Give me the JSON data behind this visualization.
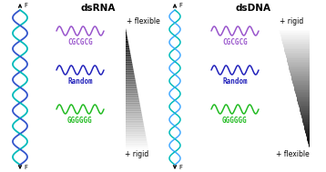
{
  "title_left": "dsRNA",
  "title_right": "dsDNA",
  "bg_color": "#ffffff",
  "labels": [
    "CGCGCG",
    "Random",
    "GGGGGG"
  ],
  "label_colors": [
    "#9955cc",
    "#2222bb",
    "#22bb22"
  ],
  "wave_colors": [
    "#9955cc",
    "#2222bb",
    "#22bb22"
  ],
  "left_top_label": "+ flexible",
  "left_bottom_label": "+ rigid",
  "right_top_label": "+ rigid",
  "right_bottom_label": "+ flexible",
  "arrow_label": "F",
  "title_fontsize": 7.5,
  "label_fontsize": 5.5,
  "annotation_fontsize": 5.5,
  "wave_label_fontsize": 5.0,
  "helix_rna_color1": "#00bbbb",
  "helix_rna_color2": "#3355cc",
  "helix_dna_color1": "#00bbbb",
  "helix_dna_color2": "#44aaff",
  "rung_color": "#336666"
}
